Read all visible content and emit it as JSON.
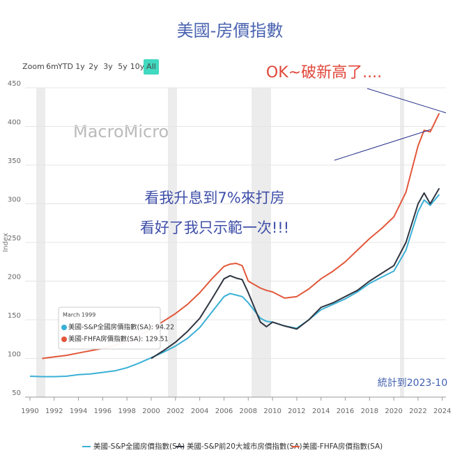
{
  "chart_data": {
    "type": "line",
    "title": "美國-房價指數",
    "y_label": "Index",
    "watermark": "MacroMicro",
    "zoom_buttons": [
      "Zoom",
      "6m",
      "YTD",
      "1y",
      "2y",
      "3y",
      "5y",
      "10y",
      "All"
    ],
    "annotations": [
      "OK~破新高了....",
      "看我升息到7%來打房",
      "看好了我只示範一次!!!",
      "統計到2023-10"
    ],
    "tooltip": {
      "date": "March 1999",
      "lines": [
        "美國-S&P全國房價指數(SA): 94.22",
        "美國-FHFA房價指數(SA): 129.51"
      ]
    },
    "x": [
      1990,
      1991,
      1992,
      1993,
      1994,
      1995,
      1996,
      1997,
      1998,
      1999,
      2000,
      2001,
      2002,
      2003,
      2004,
      2005,
      2006,
      2006.5,
      2007,
      2007.5,
      2008,
      2009,
      2009.5,
      2010,
      2011,
      2012,
      2013,
      2014,
      2015,
      2016,
      2017,
      2018,
      2019,
      2020,
      2021,
      2022,
      2022.5,
      2023,
      2023.75
    ],
    "series": [
      {
        "name": "美國-S&P全國房價指數(SA)",
        "color": "#3ab0d6",
        "values": [
          77,
          76.5,
          76.5,
          77,
          79,
          80,
          82,
          84,
          88,
          94,
          101,
          108,
          116,
          126,
          140,
          160,
          180,
          184,
          182,
          180,
          172,
          152,
          148,
          147,
          142,
          139,
          150,
          163,
          170,
          177,
          186,
          197,
          205,
          213,
          240,
          290,
          305,
          298,
          312
        ]
      },
      {
        "name": "美國-S&P前20大城市房價指數(SA)",
        "color": "#2f3540",
        "values": [
          null,
          null,
          null,
          null,
          null,
          null,
          null,
          null,
          null,
          null,
          100,
          110,
          121,
          135,
          152,
          177,
          203,
          207,
          204,
          202,
          185,
          147,
          141,
          147,
          142,
          138,
          150,
          166,
          172,
          180,
          188,
          200,
          210,
          220,
          250,
          300,
          314,
          300,
          320
        ]
      },
      {
        "name": "美國-FHFA房價指數(SA)",
        "color": "#e2573a",
        "values": [
          null,
          100,
          102,
          104,
          107,
          110,
          113,
          117,
          122,
          129,
          138,
          148,
          158,
          170,
          185,
          203,
          219,
          222,
          223,
          220,
          200,
          191,
          188,
          186,
          178,
          180,
          190,
          203,
          213,
          225,
          240,
          255,
          268,
          283,
          315,
          375,
          395,
          393,
          417
        ]
      }
    ],
    "xlim": [
      1989.6,
      2024.3
    ],
    "xticks": [
      1990,
      1992,
      1994,
      1996,
      1998,
      2000,
      2002,
      2004,
      2006,
      2008,
      2010,
      2012,
      2014,
      2016,
      2018,
      2020,
      2022,
      2024
    ],
    "ylim": [
      50,
      450
    ],
    "yticks": [
      50,
      100,
      150,
      200,
      250,
      300,
      350,
      400,
      450
    ],
    "grid": true
  }
}
